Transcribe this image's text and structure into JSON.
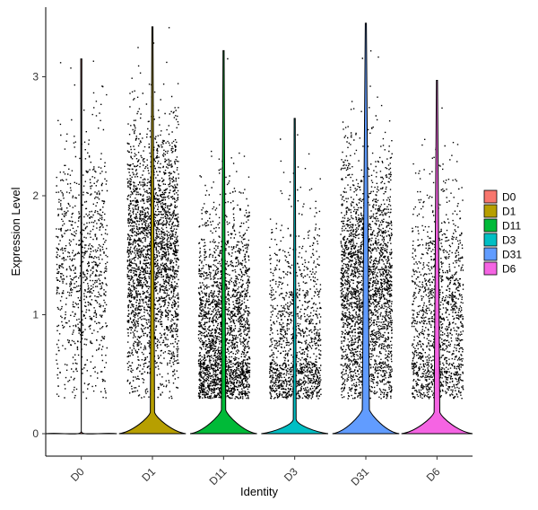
{
  "chart_data": {
    "type": "violin",
    "xlabel": "Identity",
    "ylabel": "Expression Level",
    "ylim": [
      -0.2,
      3.5
    ],
    "y_ticks": [
      "0",
      "1",
      "2",
      "3"
    ],
    "grid": false,
    "legend_position": "right",
    "categories": [
      "D0",
      "D1",
      "D11",
      "D3",
      "D31",
      "D6"
    ],
    "series": [
      {
        "name": "D0",
        "color": "#F8766D",
        "max": 3.15,
        "point_density": 0.35,
        "point_median": 1.4,
        "violin_base_halfwidth": 0.5,
        "violin_neck_halfwidth": 0.0,
        "violin_neck_y": 0.02
      },
      {
        "name": "D1",
        "color": "#B79F00",
        "max": 3.42,
        "point_density": 1.0,
        "point_median": 1.5,
        "violin_base_halfwidth": 0.47,
        "violin_neck_halfwidth": 0.03,
        "violin_neck_y": 0.18
      },
      {
        "name": "D11",
        "color": "#00BA38",
        "max": 3.22,
        "point_density": 0.9,
        "point_median": 0.8,
        "violin_base_halfwidth": 0.47,
        "violin_neck_halfwidth": 0.03,
        "violin_neck_y": 0.2
      },
      {
        "name": "D3",
        "color": "#00BFC4",
        "max": 2.65,
        "point_density": 0.5,
        "point_median": 0.7,
        "violin_base_halfwidth": 0.47,
        "violin_neck_halfwidth": 0.02,
        "violin_neck_y": 0.12
      },
      {
        "name": "D31",
        "color": "#619CFF",
        "max": 3.45,
        "point_density": 1.0,
        "point_median": 1.2,
        "violin_base_halfwidth": 0.47,
        "violin_neck_halfwidth": 0.05,
        "violin_neck_y": 0.2
      },
      {
        "name": "D6",
        "color": "#F564E3",
        "max": 2.97,
        "point_density": 0.55,
        "point_median": 0.9,
        "violin_base_halfwidth": 0.5,
        "violin_neck_halfwidth": 0.04,
        "violin_neck_y": 0.18
      }
    ]
  }
}
